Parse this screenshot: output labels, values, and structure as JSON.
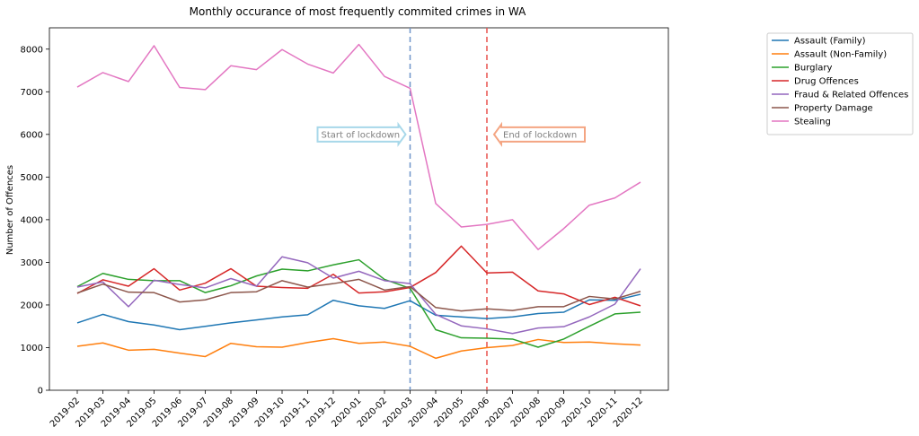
{
  "chart_data": {
    "type": "line",
    "title": "Monthly occurance of most frequently commited crimes in WA",
    "xlabel": "",
    "ylabel": "Number of Offences",
    "ylim": [
      0,
      8500
    ],
    "yticks": [
      0,
      1000,
      2000,
      3000,
      4000,
      5000,
      6000,
      7000,
      8000
    ],
    "categories": [
      "2019-02",
      "2019-03",
      "2019-04",
      "2019-05",
      "2019-06",
      "2019-07",
      "2019-08",
      "2019-09",
      "2019-10",
      "2019-11",
      "2019-12",
      "2020-01",
      "2020-02",
      "2020-03",
      "2020-04",
      "2020-05",
      "2020-06",
      "2020-07",
      "2020-08",
      "2020-09",
      "2020-10",
      "2020-11",
      "2020-12"
    ],
    "grid": false,
    "legend_position": "outside-right",
    "series": [
      {
        "name": "Assault (Family)",
        "color": "#1f77b4",
        "values": [
          1580,
          1780,
          1610,
          1530,
          1420,
          1500,
          1580,
          1650,
          1720,
          1770,
          2110,
          1980,
          1920,
          2100,
          1760,
          1720,
          1680,
          1720,
          1800,
          1830,
          2120,
          2110,
          2250
        ]
      },
      {
        "name": "Assault (Non-Family)",
        "color": "#ff7f0e",
        "values": [
          1030,
          1110,
          940,
          960,
          870,
          790,
          1100,
          1020,
          1010,
          1120,
          1210,
          1100,
          1130,
          1030,
          750,
          920,
          1000,
          1050,
          1190,
          1120,
          1130,
          1090,
          1060
        ]
      },
      {
        "name": "Burglary",
        "color": "#2ca02c",
        "values": [
          2430,
          2740,
          2600,
          2570,
          2570,
          2290,
          2450,
          2680,
          2840,
          2800,
          2940,
          3060,
          2600,
          2390,
          1420,
          1230,
          1220,
          1200,
          1010,
          1200,
          1500,
          1790,
          1830
        ]
      },
      {
        "name": "Drug Offences",
        "color": "#d62728",
        "values": [
          2270,
          2590,
          2440,
          2850,
          2350,
          2510,
          2850,
          2440,
          2410,
          2390,
          2720,
          2280,
          2310,
          2410,
          2760,
          3380,
          2750,
          2770,
          2330,
          2260,
          2010,
          2180,
          1980
        ]
      },
      {
        "name": "Fraud & Related Offences",
        "color": "#9467bd",
        "values": [
          2420,
          2540,
          1960,
          2580,
          2480,
          2400,
          2620,
          2440,
          3130,
          2990,
          2630,
          2790,
          2570,
          2500,
          1780,
          1510,
          1440,
          1330,
          1460,
          1490,
          1720,
          2020,
          2850
        ]
      },
      {
        "name": "Property Damage",
        "color": "#8c564b",
        "values": [
          2280,
          2490,
          2300,
          2290,
          2070,
          2120,
          2290,
          2310,
          2570,
          2420,
          2500,
          2600,
          2350,
          2430,
          1940,
          1860,
          1910,
          1870,
          1960,
          1960,
          2200,
          2140,
          2320
        ]
      },
      {
        "name": "Stealing",
        "color": "#e377c2",
        "values": [
          7110,
          7450,
          7240,
          8080,
          7100,
          7050,
          7610,
          7520,
          7990,
          7650,
          7440,
          8110,
          7360,
          7080,
          4380,
          3830,
          3890,
          4000,
          3300,
          3790,
          4340,
          4510,
          4880
        ]
      }
    ],
    "vlines": [
      {
        "x": "2020-03",
        "color": "#6f95c9"
      },
      {
        "x": "2020-06",
        "color": "#e8524f"
      }
    ],
    "annotations": [
      {
        "text": "Start of lockdown",
        "direction": "right",
        "y": 6000,
        "color": "#a8d8ea"
      },
      {
        "text": "End of lockdown",
        "direction": "left",
        "y": 6000,
        "color": "#f4a582"
      }
    ]
  }
}
